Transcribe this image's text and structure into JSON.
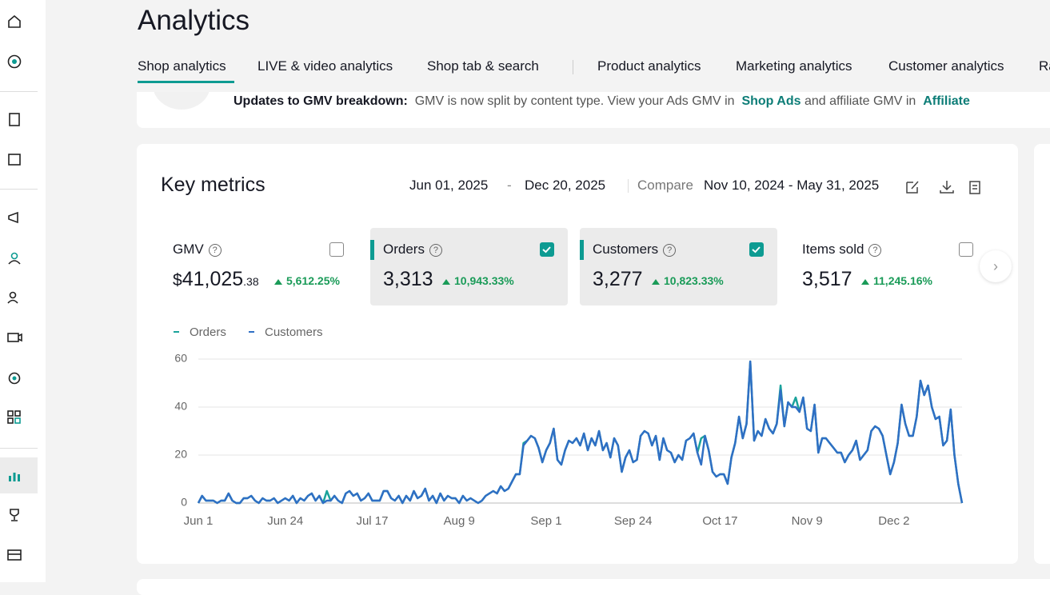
{
  "header": {
    "title": "Analytics"
  },
  "tabs": [
    "Shop analytics",
    "LIVE & video analytics",
    "Shop tab & search",
    "Product analytics",
    "Marketing analytics",
    "Customer analytics",
    "Ra"
  ],
  "banner": {
    "label": "Updates to GMV breakdown:",
    "text": "GMV is now split by content type. View your Ads GMV in",
    "link1": "Shop Ads",
    "text2": "and affiliate GMV in",
    "link2": "Affiliate"
  },
  "card": {
    "title": "Key metrics",
    "date_start": "Jun 01, 2025",
    "date_sep": "-",
    "date_end": "Dec 20, 2025",
    "compare_label": "Compare",
    "compare_range": "Nov 10, 2024 - May 31, 2025"
  },
  "metrics": [
    {
      "name": "GMV",
      "currency": "$",
      "value": "41,025",
      "decimals": ".38",
      "change": "5,612.25%",
      "checked": false
    },
    {
      "name": "Orders",
      "value": "3,313",
      "change": "10,943.33%",
      "checked": true
    },
    {
      "name": "Customers",
      "value": "3,277",
      "change": "10,823.33%",
      "checked": true
    },
    {
      "name": "Items sold",
      "value": "3,517",
      "change": "11,245.16%",
      "checked": false
    }
  ],
  "chart_data": {
    "type": "line",
    "legend": "top-left",
    "grid": true,
    "ylim": [
      0,
      60
    ],
    "yticks": [
      0,
      20,
      40,
      60
    ],
    "categories": [
      "Jun 1",
      null,
      null,
      null,
      null,
      null,
      null,
      null,
      null,
      null,
      null,
      null,
      null,
      null,
      null,
      null,
      null,
      null,
      null,
      null,
      null,
      null,
      null,
      "Jun 24",
      null,
      null,
      null,
      null,
      null,
      null,
      null,
      null,
      null,
      null,
      null,
      null,
      null,
      null,
      null,
      null,
      null,
      null,
      null,
      null,
      null,
      null,
      "Jul 17",
      null,
      null,
      null,
      null,
      null,
      null,
      null,
      null,
      null,
      null,
      null,
      null,
      null,
      null,
      null,
      null,
      null,
      null,
      null,
      null,
      null,
      null,
      "Aug 9",
      null,
      null,
      null,
      null,
      null,
      null,
      null,
      null,
      null,
      null,
      null,
      null,
      null,
      null,
      null,
      null,
      null,
      null,
      null,
      null,
      null,
      null,
      "Sep 1",
      null,
      null,
      null,
      null,
      null,
      null,
      null,
      null,
      null,
      null,
      null,
      null,
      null,
      null,
      null,
      null,
      null,
      null,
      null,
      null,
      null,
      null,
      "Sep 24",
      null,
      null,
      null,
      null,
      null,
      null,
      null,
      null,
      null,
      null,
      null,
      null,
      null,
      null,
      null,
      null,
      null,
      null,
      null,
      null,
      null,
      null,
      "Oct 17",
      null,
      null,
      null,
      null,
      null,
      null,
      null,
      null,
      null,
      null,
      null,
      null,
      null,
      null,
      null,
      null,
      null,
      null,
      null,
      null,
      null,
      null,
      "Nov 9",
      null,
      null,
      null,
      null,
      null,
      null,
      null,
      null,
      null,
      null,
      null,
      null,
      null,
      null,
      null,
      null,
      null,
      null,
      null,
      null,
      null,
      null,
      "Dec 2",
      null,
      null,
      null,
      null,
      null,
      null,
      null,
      null,
      null,
      null,
      null,
      null,
      null,
      null,
      null,
      null,
      null,
      null
    ],
    "series": [
      {
        "name": "Orders",
        "color": "#1ba39b",
        "values": [
          0,
          3,
          1,
          1,
          1,
          0,
          1,
          1,
          4,
          1,
          0,
          0,
          2,
          2,
          3,
          1,
          0,
          2,
          1,
          1,
          2,
          0,
          1,
          2,
          1,
          3,
          0,
          2,
          1,
          3,
          4,
          1,
          3,
          0,
          5,
          1,
          3,
          1,
          0,
          4,
          5,
          3,
          4,
          1,
          2,
          4,
          1,
          1,
          1,
          5,
          5,
          2,
          1,
          3,
          0,
          3,
          1,
          5,
          2,
          3,
          6,
          1,
          3,
          0,
          4,
          1,
          3,
          2,
          2,
          0,
          3,
          1,
          2,
          1,
          0,
          1,
          3,
          4,
          5,
          4,
          7,
          5,
          6,
          9,
          12,
          12,
          25,
          26,
          28,
          27,
          23,
          17,
          22,
          25,
          31,
          18,
          16,
          22,
          26,
          25,
          27,
          24,
          29,
          22,
          27,
          24,
          30,
          22,
          25,
          19,
          27,
          24,
          13,
          19,
          22,
          17,
          18,
          28,
          30,
          29,
          24,
          28,
          18,
          27,
          22,
          21,
          17,
          20,
          18,
          26,
          27,
          29,
          21,
          27,
          28,
          22,
          13,
          11,
          12,
          12,
          8,
          19,
          25,
          36,
          27,
          33,
          59,
          26,
          30,
          28,
          35,
          31,
          29,
          33,
          49,
          32,
          42,
          40,
          44,
          38,
          44,
          31,
          30,
          41,
          21,
          27,
          27,
          25,
          23,
          21,
          21,
          17,
          20,
          22,
          26,
          18,
          20,
          22,
          30,
          32,
          31,
          28,
          20,
          12,
          17,
          25,
          41,
          33,
          28,
          28,
          36,
          51,
          45,
          49,
          40,
          35,
          36,
          24,
          26,
          39,
          20,
          8,
          0
        ]
      },
      {
        "name": "Customers",
        "color": "#2f6fc4",
        "values": [
          0,
          3,
          1,
          1,
          1,
          0,
          1,
          1,
          4,
          1,
          0,
          0,
          2,
          2,
          3,
          1,
          0,
          2,
          1,
          1,
          2,
          0,
          1,
          2,
          1,
          3,
          0,
          2,
          1,
          3,
          4,
          1,
          3,
          0,
          1,
          1,
          3,
          1,
          0,
          4,
          5,
          3,
          4,
          1,
          2,
          4,
          1,
          1,
          1,
          5,
          5,
          2,
          1,
          3,
          0,
          3,
          1,
          5,
          2,
          3,
          6,
          1,
          3,
          0,
          4,
          1,
          3,
          2,
          2,
          0,
          3,
          1,
          2,
          1,
          0,
          1,
          3,
          4,
          5,
          4,
          7,
          5,
          6,
          9,
          12,
          12,
          24,
          26,
          28,
          27,
          23,
          17,
          22,
          25,
          31,
          18,
          16,
          22,
          26,
          25,
          27,
          24,
          29,
          22,
          27,
          24,
          30,
          22,
          25,
          19,
          27,
          24,
          13,
          19,
          22,
          17,
          18,
          28,
          30,
          29,
          24,
          28,
          18,
          27,
          22,
          21,
          17,
          20,
          18,
          26,
          27,
          29,
          21,
          16,
          28,
          22,
          13,
          11,
          12,
          12,
          8,
          19,
          25,
          36,
          27,
          33,
          59,
          26,
          30,
          28,
          35,
          31,
          29,
          33,
          47,
          32,
          42,
          40,
          40,
          38,
          44,
          31,
          30,
          41,
          21,
          27,
          27,
          25,
          23,
          21,
          21,
          17,
          20,
          22,
          26,
          18,
          20,
          22,
          30,
          32,
          31,
          28,
          20,
          12,
          17,
          25,
          41,
          33,
          28,
          28,
          36,
          51,
          45,
          49,
          40,
          35,
          36,
          24,
          26,
          39,
          20,
          8,
          0
        ]
      }
    ]
  }
}
